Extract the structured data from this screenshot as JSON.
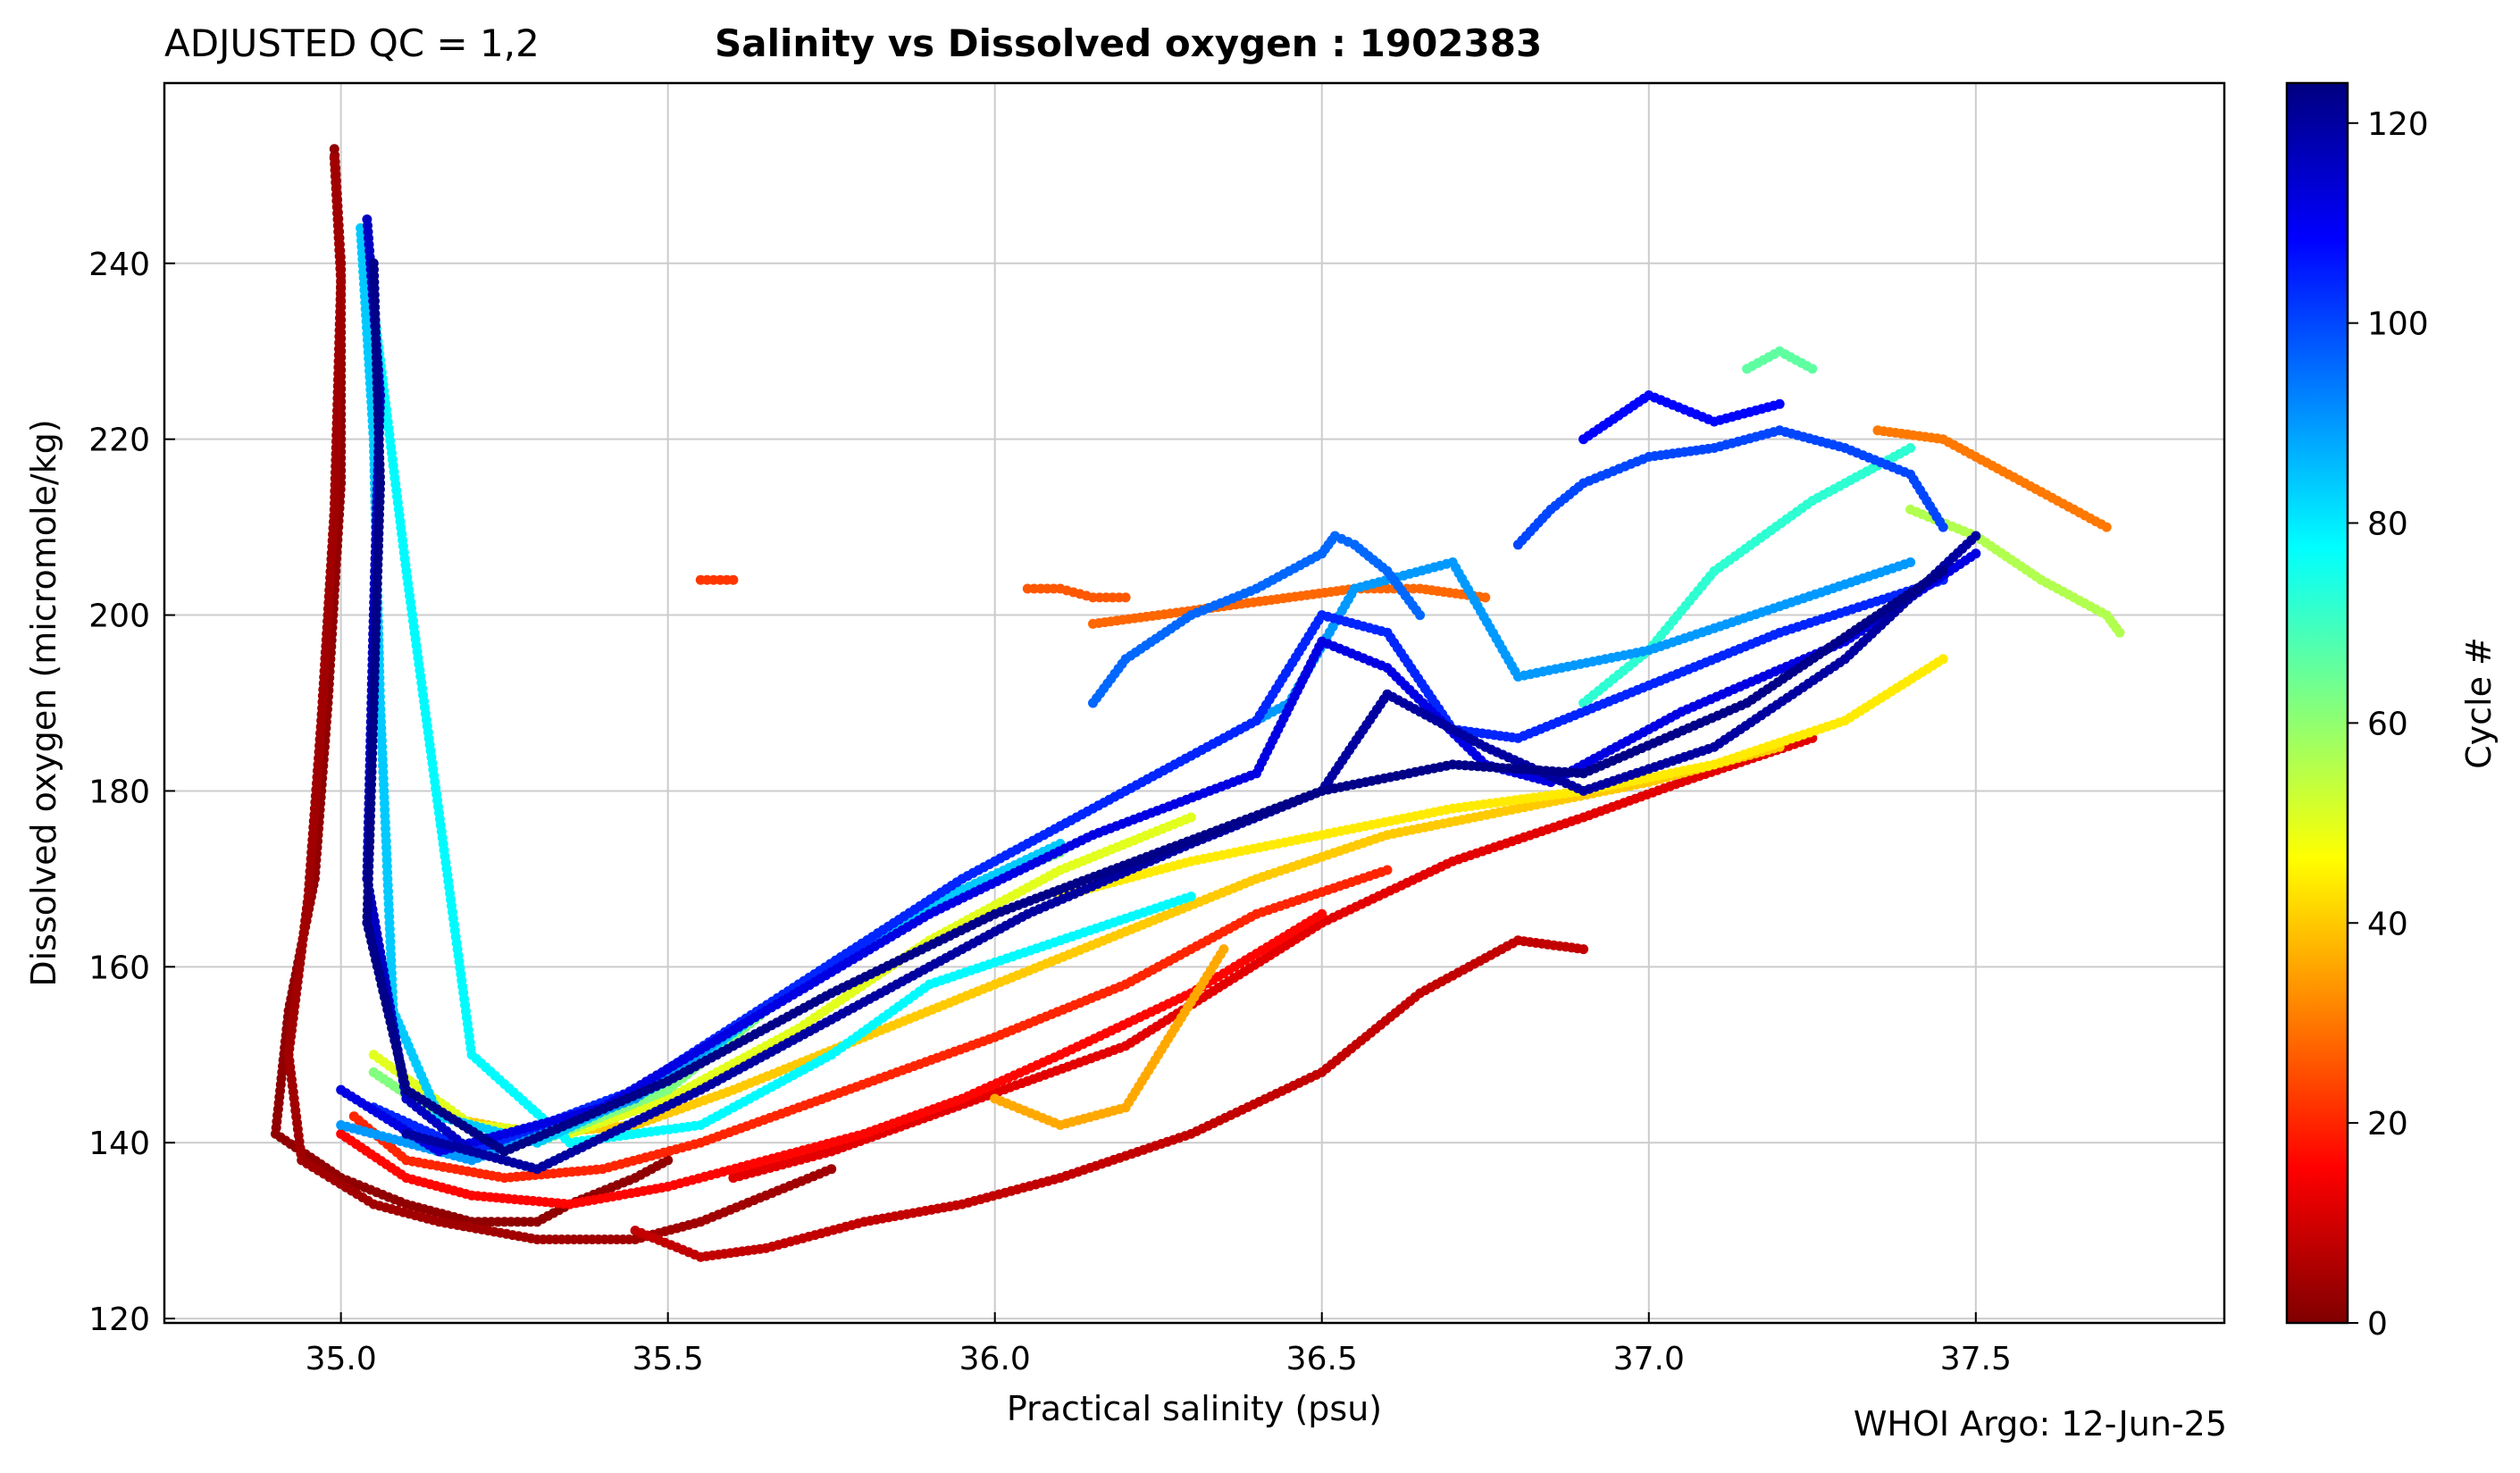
{
  "header": {
    "qc_label": "ADJUSTED QC = 1,2",
    "title": "Salinity vs Dissolved oxygen : 1902383"
  },
  "footer": {
    "credit": "WHOI Argo: 12-Jun-25"
  },
  "chart_data": {
    "type": "scatter",
    "title": "Salinity vs Dissolved oxygen : 1902383",
    "xlabel": "Practical salinity  (psu)",
    "ylabel": "Dissolved oxygen  (micromole/kg)",
    "xlim": [
      34.73,
      37.88
    ],
    "ylim": [
      119.5,
      260.5
    ],
    "xticks": [
      35.0,
      35.5,
      36.0,
      36.5,
      37.0,
      37.5
    ],
    "xtick_labels": [
      "35.0",
      "35.5",
      "36.0",
      "36.5",
      "37.0",
      "37.5"
    ],
    "yticks": [
      120,
      140,
      160,
      180,
      200,
      220,
      240
    ],
    "ytick_labels": [
      "120",
      "140",
      "160",
      "180",
      "200",
      "220",
      "240"
    ],
    "grid": true,
    "colorbar": {
      "label": "Cycle #",
      "colormap": "jet_reversed",
      "range": [
        0,
        124
      ],
      "ticks": [
        0,
        20,
        40,
        60,
        80,
        100,
        120
      ],
      "tick_labels": [
        "0",
        "20",
        "40",
        "60",
        "80",
        "100",
        "120"
      ],
      "stops": [
        "#800000",
        "#ff0000",
        "#ff8000",
        "#ffff00",
        "#80ff80",
        "#00ffff",
        "#0080ff",
        "#0000ff",
        "#000080"
      ]
    },
    "series": [
      {
        "cycle": 2,
        "x": [
          34.99,
          35.0,
          35.0,
          34.98,
          34.96,
          34.92,
          34.9,
          35.0,
          35.1,
          35.2,
          35.3,
          35.35,
          35.45,
          35.5
        ],
        "y": [
          253,
          240,
          215,
          190,
          170,
          155,
          141,
          136,
          133,
          131,
          131,
          133,
          136,
          138
        ]
      },
      {
        "cycle": 4,
        "x": [
          34.99,
          35.0,
          34.99,
          34.97,
          34.95,
          34.92,
          34.94,
          35.05,
          35.15,
          35.3,
          35.45,
          35.55,
          35.65,
          35.75
        ],
        "y": [
          252,
          238,
          212,
          188,
          168,
          150,
          138,
          133,
          131,
          129,
          129,
          131,
          134,
          137
        ]
      },
      {
        "cycle": 8,
        "x": [
          35.45,
          35.55,
          35.65,
          35.8,
          35.95,
          36.1,
          36.3,
          36.5,
          36.65,
          36.8,
          36.9
        ],
        "y": [
          130,
          127,
          128,
          131,
          133,
          136,
          141,
          148,
          157,
          163,
          162
        ]
      },
      {
        "cycle": 12,
        "x": [
          35.6,
          35.75,
          35.9,
          36.05,
          36.2,
          36.35,
          36.5,
          36.7,
          36.9,
          37.05,
          37.25
        ],
        "y": [
          136,
          139,
          143,
          147,
          151,
          158,
          165,
          172,
          177,
          181,
          186
        ]
      },
      {
        "cycle": 16,
        "x": [
          35.0,
          35.1,
          35.2,
          35.35,
          35.5,
          35.65,
          35.8,
          35.95,
          36.1,
          36.3,
          36.5
        ],
        "y": [
          141,
          136,
          134,
          133,
          135,
          138,
          141,
          145,
          150,
          157,
          166
        ]
      },
      {
        "cycle": 20,
        "x": [
          35.02,
          35.1,
          35.25,
          35.4,
          35.55,
          35.7,
          35.85,
          36.0,
          36.2,
          36.4,
          36.6
        ],
        "y": [
          143,
          138,
          136,
          137,
          140,
          144,
          148,
          152,
          158,
          166,
          171
        ]
      },
      {
        "cycle": 22,
        "x": [
          35.55,
          35.6
        ],
        "y": [
          204,
          204
        ]
      },
      {
        "cycle": 26,
        "x": [
          36.05,
          36.1,
          36.15,
          36.2
        ],
        "y": [
          203,
          203,
          202,
          202
        ]
      },
      {
        "cycle": 28,
        "x": [
          36.15,
          36.25,
          36.35,
          36.45,
          36.55,
          36.65,
          36.75
        ],
        "y": [
          199,
          200,
          201,
          202,
          203,
          203,
          202
        ]
      },
      {
        "cycle": 30,
        "x": [
          37.35,
          37.45,
          37.55,
          37.65,
          37.7
        ],
        "y": [
          221,
          220,
          216,
          212,
          210
        ]
      },
      {
        "cycle": 36,
        "x": [
          36.0,
          36.1,
          36.2,
          36.25,
          36.3,
          36.35
        ],
        "y": [
          145,
          142,
          144,
          150,
          156,
          162
        ]
      },
      {
        "cycle": 40,
        "x": [
          35.05,
          35.15,
          35.3,
          35.45,
          35.6,
          35.8,
          36.0,
          36.2,
          36.4,
          36.6,
          36.8,
          37.0,
          37.2
        ],
        "y": [
          148,
          143,
          141,
          142,
          146,
          152,
          158,
          164,
          170,
          175,
          178,
          181,
          185
        ]
      },
      {
        "cycle": 44,
        "x": [
          36.1,
          36.3,
          36.5,
          36.7,
          36.9,
          37.1,
          37.3,
          37.45
        ],
        "y": [
          168,
          172,
          175,
          178,
          180,
          183,
          188,
          195
        ]
      },
      {
        "cycle": 50,
        "x": [
          35.05,
          35.2,
          35.35,
          35.5,
          35.7,
          35.9,
          36.1,
          36.3
        ],
        "y": [
          150,
          142,
          141,
          145,
          153,
          163,
          171,
          177
        ]
      },
      {
        "cycle": 56,
        "x": [
          37.4,
          37.5,
          37.6,
          37.7,
          37.72
        ],
        "y": [
          212,
          209,
          204,
          200,
          198
        ]
      },
      {
        "cycle": 62,
        "x": [
          35.05,
          35.15,
          35.3,
          35.5,
          35.7,
          35.9,
          36.1
        ],
        "y": [
          148,
          143,
          140,
          146,
          158,
          167,
          173
        ]
      },
      {
        "cycle": 66,
        "x": [
          37.15,
          37.2,
          37.25
        ],
        "y": [
          228,
          230,
          228
        ]
      },
      {
        "cycle": 72,
        "x": [
          36.9,
          37.0,
          37.1,
          37.25,
          37.4
        ],
        "y": [
          190,
          196,
          205,
          213,
          219
        ]
      },
      {
        "cycle": 78,
        "x": [
          35.04,
          35.1,
          35.2,
          35.35,
          35.55,
          35.75,
          35.9,
          36.1,
          36.3
        ],
        "y": [
          241,
          205,
          150,
          140,
          142,
          150,
          158,
          163,
          168
        ]
      },
      {
        "cycle": 84,
        "x": [
          35.03,
          35.05,
          35.06,
          35.08,
          35.15,
          35.3,
          35.5,
          35.7,
          35.9,
          36.1
        ],
        "y": [
          244,
          220,
          190,
          155,
          143,
          140,
          147,
          158,
          167,
          174
        ]
      },
      {
        "cycle": 90,
        "x": [
          35.0,
          35.2,
          35.45,
          35.7,
          35.95,
          36.2,
          36.45,
          36.55,
          36.7,
          36.8,
          37.0,
          37.2,
          37.4
        ],
        "y": [
          142,
          138,
          145,
          158,
          170,
          180,
          190,
          203,
          206,
          193,
          196,
          201,
          206
        ]
      },
      {
        "cycle": 96,
        "x": [
          36.15,
          36.2,
          36.3,
          36.4,
          36.5,
          36.52,
          36.55,
          36.6,
          36.65
        ],
        "y": [
          190,
          195,
          200,
          203,
          207,
          209,
          208,
          205,
          200
        ]
      },
      {
        "cycle": 100,
        "x": [
          36.8,
          36.85,
          36.9,
          37.0,
          37.1,
          37.2,
          37.3,
          37.4,
          37.45
        ],
        "y": [
          208,
          212,
          215,
          218,
          219,
          221,
          219,
          216,
          210
        ]
      },
      {
        "cycle": 104,
        "x": [
          35.05,
          35.2,
          35.45,
          35.7,
          35.95,
          36.2,
          36.4,
          36.5,
          36.6,
          36.7,
          36.8,
          37.0,
          37.2,
          37.45
        ],
        "y": [
          144,
          139,
          146,
          158,
          170,
          180,
          188,
          200,
          198,
          187,
          186,
          192,
          198,
          204
        ]
      },
      {
        "cycle": 108,
        "x": [
          36.9,
          37.0,
          37.1,
          37.2
        ],
        "y": [
          220,
          225,
          222,
          224
        ]
      },
      {
        "cycle": 112,
        "x": [
          35.0,
          35.15,
          35.4,
          35.65,
          35.9,
          36.15,
          36.4,
          36.5,
          36.6,
          36.75,
          36.85,
          37.05,
          37.3,
          37.5
        ],
        "y": [
          146,
          139,
          144,
          155,
          166,
          175,
          182,
          197,
          194,
          183,
          181,
          189,
          197,
          207
        ]
      },
      {
        "cycle": 116,
        "x": [
          35.04,
          35.06,
          35.05,
          35.04,
          35.1,
          35.2
        ],
        "y": [
          245,
          225,
          200,
          170,
          145,
          139
        ]
      },
      {
        "cycle": 120,
        "x": [
          35.1,
          35.3,
          35.55,
          35.8,
          36.05,
          36.3,
          36.5,
          36.6,
          36.75,
          36.9,
          37.1,
          37.3,
          37.5
        ],
        "y": [
          141,
          137,
          146,
          156,
          166,
          174,
          180,
          191,
          185,
          180,
          185,
          195,
          209
        ]
      },
      {
        "cycle": 123,
        "x": [
          35.05,
          35.06,
          35.05,
          35.04,
          35.1,
          35.25,
          35.5,
          35.75,
          36.0,
          36.25,
          36.5,
          36.7,
          36.9,
          37.15,
          37.45
        ],
        "y": [
          240,
          215,
          190,
          165,
          146,
          139,
          147,
          157,
          166,
          173,
          180,
          183,
          182,
          190,
          205
        ]
      }
    ]
  }
}
